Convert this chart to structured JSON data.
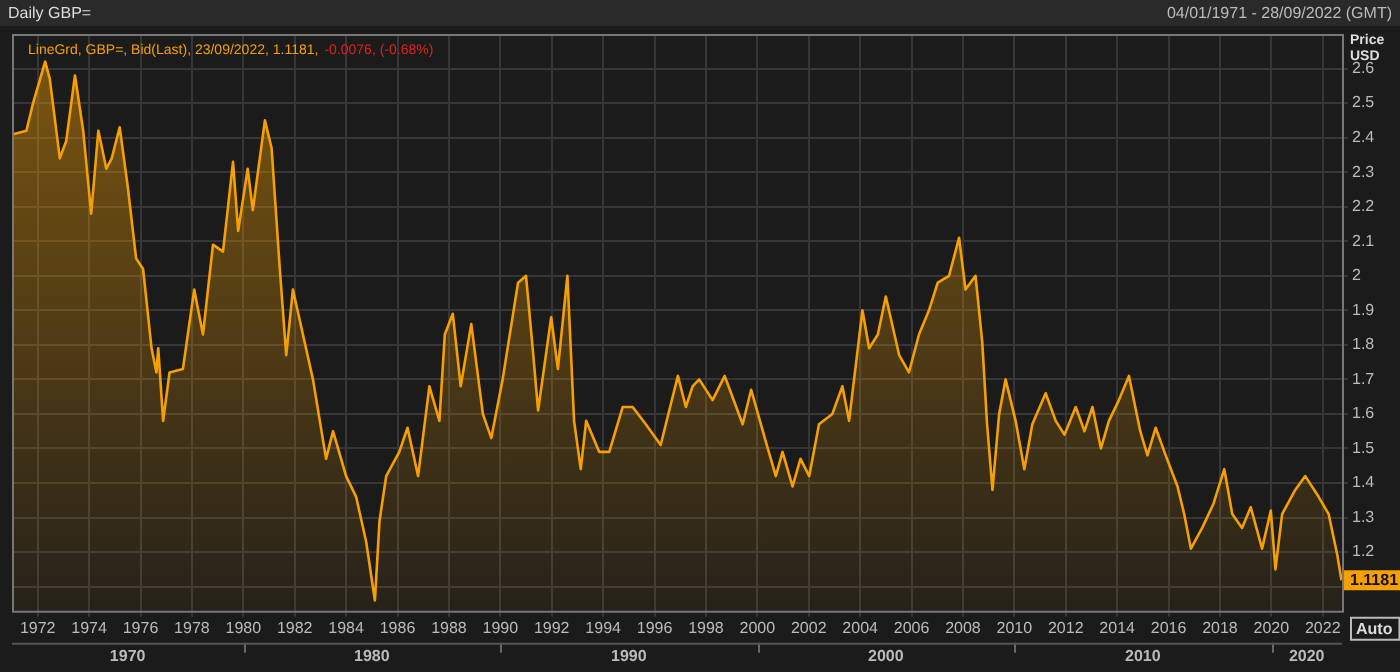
{
  "chart_data": {
    "type": "area",
    "title": "Daily GBP=",
    "subtitle": "04/01/1971 - 28/09/2022 (GMT)",
    "ylabel": "Price USD",
    "annotations": [
      "-0.0076, (-0.68%)",
      "Auto",
      "1970",
      "1980",
      "1990",
      "2000",
      "2010",
      "2020"
    ],
    "legend": "top left",
    "grid": true,
    "xlim": [
      1971,
      2022.75
    ],
    "xticks": [
      1972,
      1974,
      1976,
      1978,
      1980,
      1982,
      1984,
      1986,
      1988,
      1990,
      1992,
      1994,
      1996,
      1998,
      2000,
      2002,
      2004,
      2006,
      2008,
      2010,
      2012,
      2014,
      2016,
      2018,
      2020,
      2022
    ],
    "ylim": [
      1.03,
      2.7
    ],
    "yticks": [
      {
        "value": 1.1,
        "label": null
      },
      1.2,
      1.3,
      1.4,
      1.5,
      1.6,
      1.7,
      1.8,
      1.9,
      2,
      2.1,
      2.2,
      2.3,
      2.4,
      2.5,
      2.6
    ],
    "series": [
      {
        "name": "LineGrd, GBP=, Bid(Last), 23/09/2022, 1.1181,",
        "color": "#f5a000",
        "x": [
          1971.04,
          1971.56,
          1971.82,
          1972.29,
          1972.47,
          1972.86,
          1973.11,
          1973.45,
          1973.77,
          1974.08,
          1974.36,
          1974.67,
          1974.88,
          1975.19,
          1975.5,
          1975.83,
          1976.1,
          1976.43,
          1976.62,
          1976.69,
          1976.88,
          1977.13,
          1977.65,
          1978.09,
          1978.43,
          1978.82,
          1979.21,
          1979.6,
          1979.8,
          1980.17,
          1980.37,
          1980.84,
          1981.1,
          1981.41,
          1981.67,
          1981.93,
          1982.32,
          1982.71,
          1983.22,
          1983.49,
          1984,
          1984.39,
          1984.78,
          1985.12,
          1985.3,
          1985.56,
          1986.07,
          1986.39,
          1986.8,
          1987.24,
          1987.63,
          1987.84,
          1988.15,
          1988.46,
          1988.87,
          1989.32,
          1989.65,
          1990.09,
          1990.69,
          1991,
          1991.26,
          1991.47,
          1991.98,
          1992.24,
          1992.61,
          1992.87,
          1993.13,
          1993.34,
          1993.85,
          1994.24,
          1994.76,
          1995.15,
          1995.66,
          1996.24,
          1996.44,
          1996.91,
          1997.22,
          1997.48,
          1997.74,
          1998.26,
          1998.73,
          1999.43,
          1999.76,
          2000.33,
          2000.72,
          2000.98,
          2001.37,
          2001.68,
          2002.02,
          2002.4,
          2002.92,
          2003.31,
          2003.57,
          2004.09,
          2004.35,
          2004.69,
          2005,
          2005.52,
          2005.9,
          2006.29,
          2006.68,
          2007.02,
          2007.46,
          2007.85,
          2008.1,
          2008.49,
          2008.75,
          2008.94,
          2009.15,
          2009.41,
          2009.66,
          2010.05,
          2010.39,
          2010.7,
          2011.22,
          2011.61,
          2011.95,
          2012.39,
          2012.73,
          2013.04,
          2013.37,
          2013.68,
          2014.07,
          2014.46,
          2014.9,
          2015.18,
          2015.5,
          2015.89,
          2016.35,
          2016.61,
          2016.87,
          2017.31,
          2017.75,
          2018.17,
          2018.48,
          2018.86,
          2019.2,
          2019.64,
          2019.98,
          2020.16,
          2020.42,
          2020.93,
          2021.32,
          2021.84,
          2022.23,
          2022.57,
          2022.73
        ],
        "values": [
          2.41,
          2.42,
          2.5,
          2.62,
          2.57,
          2.34,
          2.39,
          2.58,
          2.42,
          2.18,
          2.42,
          2.31,
          2.34,
          2.43,
          2.26,
          2.05,
          2.02,
          1.79,
          1.72,
          1.79,
          1.58,
          1.72,
          1.73,
          1.96,
          1.83,
          2.09,
          2.07,
          2.33,
          2.13,
          2.31,
          2.19,
          2.45,
          2.37,
          2.03,
          1.77,
          1.96,
          1.83,
          1.7,
          1.47,
          1.55,
          1.42,
          1.36,
          1.23,
          1.06,
          1.29,
          1.42,
          1.49,
          1.56,
          1.42,
          1.68,
          1.58,
          1.83,
          1.89,
          1.68,
          1.86,
          1.6,
          1.53,
          1.7,
          1.98,
          2,
          1.79,
          1.61,
          1.88,
          1.73,
          2,
          1.58,
          1.44,
          1.58,
          1.49,
          1.49,
          1.62,
          1.62,
          1.57,
          1.51,
          1.57,
          1.71,
          1.62,
          1.68,
          1.7,
          1.64,
          1.71,
          1.57,
          1.67,
          1.52,
          1.42,
          1.49,
          1.39,
          1.47,
          1.42,
          1.57,
          1.6,
          1.68,
          1.58,
          1.9,
          1.79,
          1.83,
          1.94,
          1.77,
          1.72,
          1.83,
          1.9,
          1.98,
          2,
          2.11,
          1.96,
          2,
          1.81,
          1.57,
          1.38,
          1.6,
          1.7,
          1.58,
          1.44,
          1.57,
          1.66,
          1.58,
          1.54,
          1.62,
          1.55,
          1.62,
          1.5,
          1.58,
          1.64,
          1.71,
          1.55,
          1.48,
          1.56,
          1.48,
          1.39,
          1.31,
          1.21,
          1.27,
          1.34,
          1.44,
          1.31,
          1.27,
          1.33,
          1.21,
          1.32,
          1.15,
          1.31,
          1.38,
          1.42,
          1.36,
          1.31,
          1.19,
          1.1181
        ],
        "value_labels": [
          null,
          null,
          null,
          null,
          null,
          null,
          null,
          null,
          null,
          null,
          null,
          null,
          null,
          null,
          null,
          null,
          null,
          null,
          null,
          null,
          null,
          null,
          null,
          null,
          null,
          null,
          null,
          null,
          null,
          null,
          null,
          null,
          null,
          null,
          null,
          null,
          null,
          null,
          null,
          null,
          null,
          null,
          null,
          null,
          null,
          null,
          null,
          null,
          null,
          null,
          null,
          null,
          null,
          null,
          null,
          null,
          null,
          null,
          null,
          null,
          null,
          null,
          null,
          null,
          null,
          null,
          null,
          null,
          null,
          null,
          null,
          null,
          null,
          null,
          null,
          null,
          null,
          null,
          null,
          null,
          null,
          null,
          null,
          null,
          null,
          null,
          null,
          null,
          null,
          null,
          null,
          null,
          null,
          null,
          null,
          null,
          null,
          null,
          null,
          null,
          null,
          null,
          null,
          null,
          null,
          null,
          null,
          null,
          null,
          null,
          null,
          null,
          null,
          null,
          null,
          null,
          null,
          null,
          null,
          null,
          null,
          null,
          null,
          null,
          null,
          null,
          null,
          null,
          null,
          null,
          null,
          null,
          null,
          null,
          null,
          null,
          null,
          null,
          null,
          null,
          null,
          null,
          null,
          null,
          null,
          null,
          "1.1181"
        ]
      }
    ]
  }
}
